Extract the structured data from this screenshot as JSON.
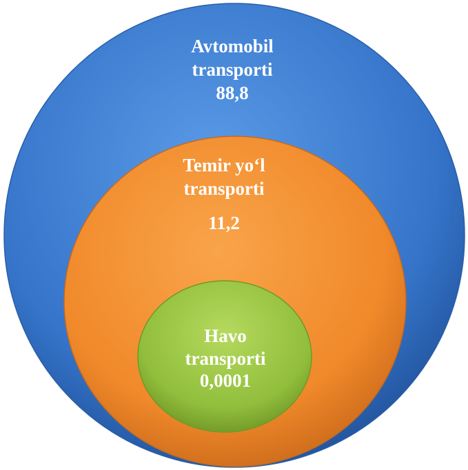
{
  "nodes": [
    {
      "label": [
        "Avtomobil",
        "transporti"
      ],
      "value": "88,8"
    },
    {
      "label": [
        "Temir yo‘l",
        "transporti"
      ],
      "value": "11,2"
    },
    {
      "label": [
        "Havo",
        "transporti"
      ],
      "value": "0,0001"
    }
  ]
}
